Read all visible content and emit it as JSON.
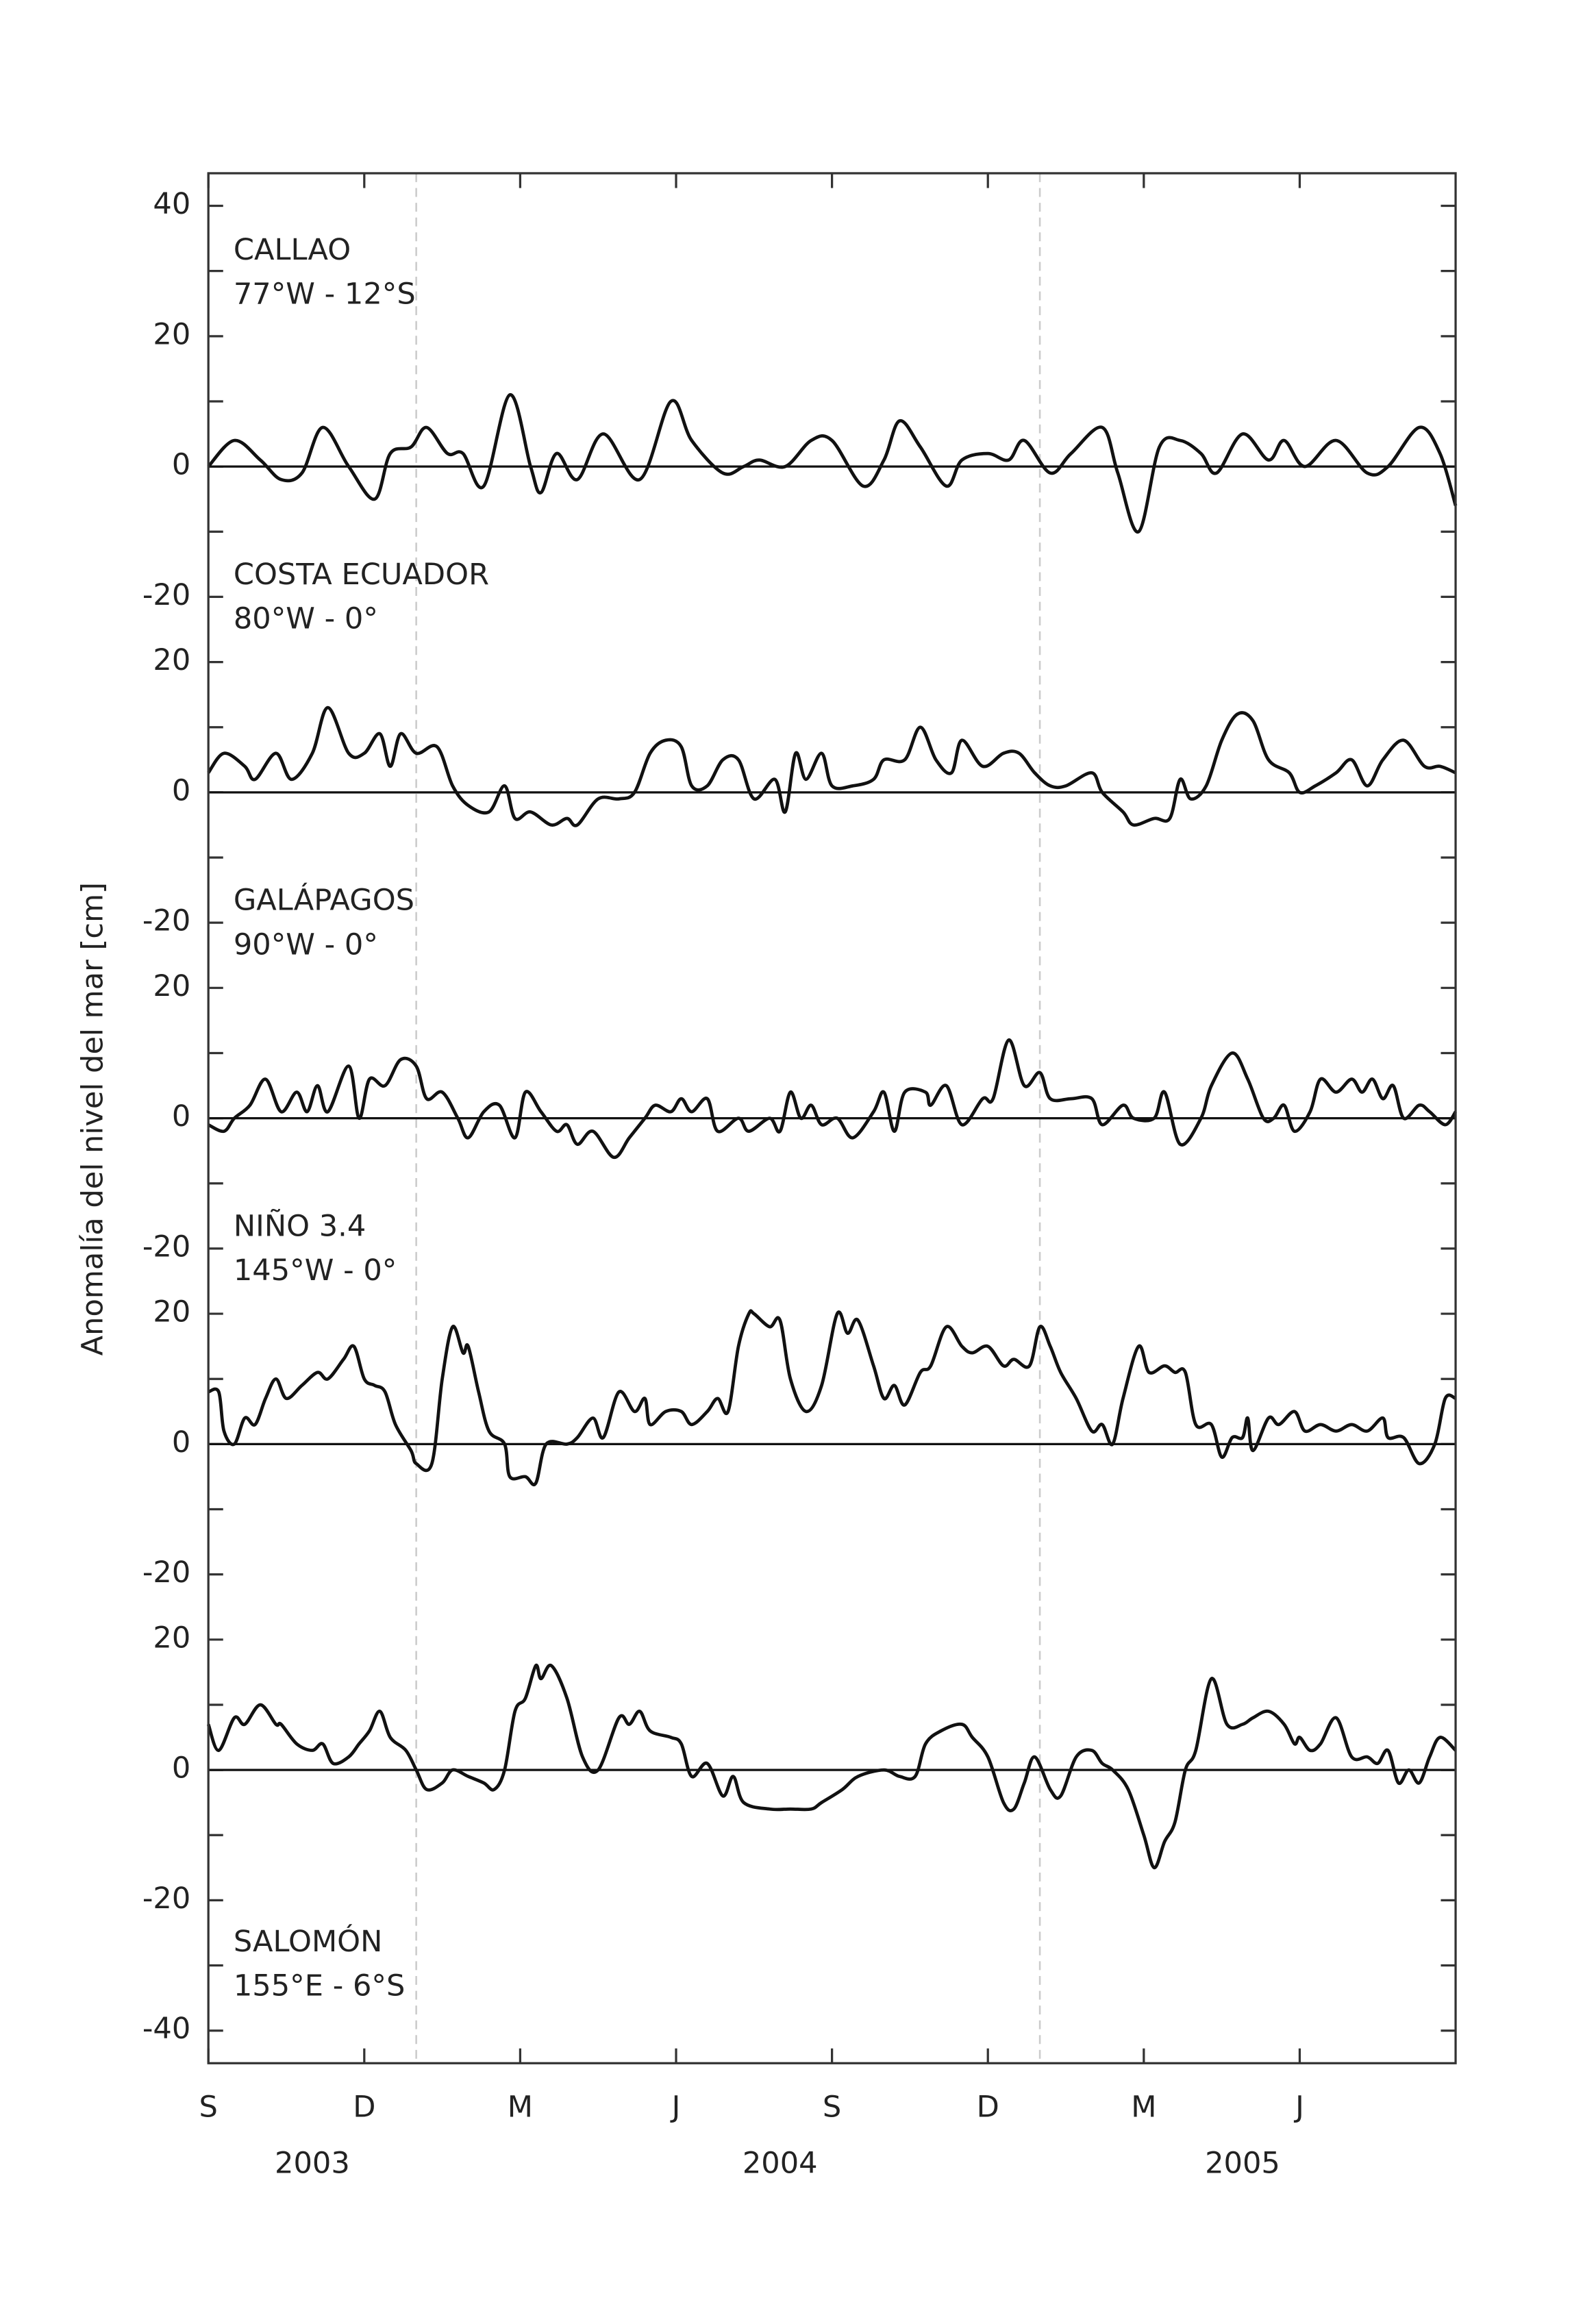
{
  "chart_data": {
    "type": "line",
    "ylabel": "Anomalía del nivel del mar [cm]",
    "color": "#111111",
    "xlim": [
      0,
      24
    ],
    "xticks": [
      {
        "value": 0,
        "label": "S"
      },
      {
        "value": 3,
        "label": "D"
      },
      {
        "value": 6,
        "label": "M"
      },
      {
        "value": 9,
        "label": "J"
      },
      {
        "value": 12,
        "label": "S"
      },
      {
        "value": 15,
        "label": "D"
      },
      {
        "value": 18,
        "label": "M"
      },
      {
        "value": 21,
        "label": "J"
      }
    ],
    "year_labels": [
      {
        "value": 2.0,
        "label": "2003"
      },
      {
        "value": 11.0,
        "label": "2004"
      },
      {
        "value": 19.9,
        "label": "2005"
      }
    ],
    "dividers": [
      4,
      16
    ],
    "series": [
      {
        "name": "CALLAO",
        "location": "77°W - 12°S",
        "ylim": [
          -25,
          45
        ],
        "yticks": [
          -20,
          0,
          20,
          40
        ],
        "yminor": [
          -10,
          10,
          30
        ],
        "x": [
          0.0,
          0.5,
          1.0,
          1.4,
          1.8,
          2.2,
          2.7,
          3.2,
          3.5,
          3.9,
          4.2,
          4.6,
          4.9,
          5.3,
          5.8,
          6.2,
          6.4,
          6.7,
          7.1,
          7.6,
          8.3,
          8.9,
          9.3,
          9.9,
          10.3,
          10.6,
          11.1,
          11.6,
          12.0,
          12.6,
          13.0,
          13.3,
          13.7,
          14.2,
          14.5,
          15.0,
          15.4,
          15.7,
          16.2,
          16.6,
          17.2,
          17.5,
          17.9,
          18.3,
          18.7,
          19.1,
          19.4,
          19.9,
          20.4,
          20.7,
          21.1,
          21.7,
          22.3,
          22.7,
          23.3,
          23.7,
          24.0
        ],
        "values": [
          0,
          4,
          1,
          -2,
          -1,
          6,
          0,
          -5,
          2,
          3,
          6,
          2,
          2,
          -3,
          11,
          0,
          -4,
          2,
          -2,
          5,
          -2,
          10,
          4,
          -1,
          0,
          1,
          0,
          4,
          4,
          -3,
          1,
          7,
          3,
          -3,
          1,
          2,
          1,
          4,
          -1,
          2,
          6,
          -1,
          -10,
          3,
          4,
          2,
          -1,
          5,
          1,
          4,
          0,
          4,
          -1,
          0,
          6,
          2,
          -6
        ]
      },
      {
        "name": "COSTA ECUADOR",
        "location": "80°W - 0°",
        "ylim": [
          -25,
          25
        ],
        "yticks": [
          -20,
          0,
          20
        ],
        "yminor": [
          -10,
          10
        ],
        "x": [
          0.0,
          0.3,
          0.7,
          0.9,
          1.3,
          1.6,
          2.0,
          2.3,
          2.7,
          3.0,
          3.3,
          3.5,
          3.7,
          4.0,
          4.4,
          4.7,
          5.0,
          5.4,
          5.7,
          5.9,
          6.2,
          6.6,
          6.9,
          7.1,
          7.5,
          7.9,
          8.2,
          8.5,
          8.8,
          9.1,
          9.3,
          9.6,
          9.9,
          10.2,
          10.5,
          10.9,
          11.1,
          11.3,
          11.5,
          11.8,
          12.0,
          12.4,
          12.8,
          13.0,
          13.4,
          13.7,
          14.0,
          14.3,
          14.5,
          14.9,
          15.3,
          15.6,
          15.9,
          16.2,
          16.5,
          17.0,
          17.2,
          17.6,
          17.8,
          18.2,
          18.5,
          18.7,
          18.9,
          19.2,
          19.5,
          19.8,
          20.1,
          20.4,
          20.8,
          21.0,
          21.3,
          21.7,
          22.0,
          22.3,
          22.6,
          23.0,
          23.4,
          23.7,
          24.0
        ],
        "values": [
          3,
          6,
          4,
          2,
          6,
          2,
          6,
          13,
          6,
          6,
          9,
          4,
          9,
          6,
          7,
          1,
          -2,
          -3,
          1,
          -4,
          -3,
          -5,
          -4,
          -5,
          -1,
          -1,
          0,
          6,
          8,
          7,
          1,
          1,
          5,
          5,
          -1,
          2,
          -3,
          6,
          2,
          6,
          1,
          1,
          2,
          5,
          5,
          10,
          5,
          3,
          8,
          4,
          6,
          6,
          3,
          1,
          1,
          3,
          0,
          -3,
          -5,
          -4,
          -4,
          2,
          -1,
          1,
          8,
          12,
          11,
          5,
          3,
          0,
          1,
          3,
          5,
          1,
          5,
          8,
          4,
          4,
          3
        ]
      },
      {
        "name": "GALÁPAGOS",
        "location": "90°W - 0°",
        "ylim": [
          -25,
          25
        ],
        "yticks": [
          -20,
          0,
          20
        ],
        "yminor": [
          -10,
          10
        ],
        "x": [
          0.0,
          0.3,
          0.5,
          0.8,
          1.1,
          1.4,
          1.7,
          1.9,
          2.1,
          2.3,
          2.7,
          2.9,
          3.1,
          3.4,
          3.7,
          4.0,
          4.2,
          4.5,
          4.8,
          5.0,
          5.3,
          5.6,
          5.9,
          6.1,
          6.4,
          6.7,
          6.9,
          7.1,
          7.4,
          7.8,
          8.1,
          8.4,
          8.6,
          8.9,
          9.1,
          9.3,
          9.6,
          9.8,
          10.2,
          10.4,
          10.8,
          11.0,
          11.2,
          11.4,
          11.6,
          11.8,
          12.1,
          12.4,
          12.8,
          13.0,
          13.2,
          13.4,
          13.8,
          13.9,
          14.2,
          14.5,
          14.9,
          15.1,
          15.4,
          15.7,
          16.0,
          16.2,
          16.6,
          17.0,
          17.2,
          17.6,
          17.8,
          18.2,
          18.4,
          18.7,
          19.1,
          19.3,
          19.7,
          20.0,
          20.3,
          20.5,
          20.7,
          20.9,
          21.2,
          21.4,
          21.7,
          22.0,
          22.2,
          22.4,
          22.6,
          22.8,
          23.0,
          23.3,
          23.5,
          23.8,
          24.0
        ],
        "values": [
          -1,
          -2,
          0,
          2,
          6,
          1,
          4,
          1,
          5,
          1,
          8,
          0,
          6,
          5,
          9,
          8,
          3,
          4,
          0,
          -3,
          1,
          2,
          -3,
          4,
          1,
          -2,
          -1,
          -4,
          -2,
          -6,
          -3,
          0,
          2,
          1,
          3,
          1,
          3,
          -2,
          0,
          -2,
          0,
          -2,
          4,
          0,
          2,
          -1,
          0,
          -3,
          1,
          4,
          -2,
          4,
          4,
          2,
          5,
          -1,
          3,
          3,
          12,
          5,
          7,
          3,
          3,
          3,
          -1,
          2,
          0,
          0,
          4,
          -4,
          0,
          5,
          10,
          6,
          0,
          0,
          2,
          -2,
          1,
          6,
          4,
          6,
          4,
          6,
          3,
          5,
          0,
          2,
          1,
          -1,
          1
        ]
      },
      {
        "name": "NIÑO 3.4",
        "location": "145°W - 0°",
        "ylim": [
          -25,
          25
        ],
        "yticks": [
          -20,
          0,
          20
        ],
        "yminor": [
          -10,
          10
        ],
        "x": [
          0.0,
          0.2,
          0.3,
          0.5,
          0.7,
          0.9,
          1.1,
          1.3,
          1.5,
          1.8,
          2.1,
          2.3,
          2.6,
          2.8,
          3.0,
          3.2,
          3.4,
          3.6,
          3.9,
          4.0,
          4.3,
          4.5,
          4.7,
          4.9,
          5.0,
          5.2,
          5.4,
          5.7,
          5.8,
          6.1,
          6.3,
          6.5,
          6.9,
          7.1,
          7.4,
          7.6,
          7.9,
          8.2,
          8.4,
          8.5,
          8.8,
          9.1,
          9.3,
          9.6,
          9.8,
          10.0,
          10.2,
          10.4,
          10.5,
          10.8,
          11.0,
          11.2,
          11.5,
          11.8,
          12.1,
          12.3,
          12.5,
          12.8,
          13.0,
          13.2,
          13.4,
          13.7,
          13.9,
          14.2,
          14.5,
          14.7,
          15.0,
          15.3,
          15.5,
          15.8,
          16.0,
          16.2,
          16.4,
          16.7,
          17.0,
          17.2,
          17.4,
          17.6,
          17.9,
          18.1,
          18.4,
          18.6,
          18.8,
          19.0,
          19.3,
          19.5,
          19.7,
          19.9,
          20.0,
          20.1,
          20.4,
          20.6,
          20.9,
          21.1,
          21.4,
          21.7,
          22.0,
          22.3,
          22.6,
          22.7,
          23.0,
          23.3,
          23.6,
          23.8,
          24.0
        ],
        "values": [
          8,
          8,
          2,
          0,
          4,
          3,
          7,
          10,
          7,
          9,
          11,
          10,
          13,
          15,
          10,
          9,
          8,
          3,
          -1,
          -3,
          -3,
          10,
          18,
          14,
          15,
          8,
          2,
          0,
          -5,
          -5,
          -6,
          0,
          0,
          1,
          4,
          1,
          8,
          5,
          7,
          3,
          5,
          5,
          3,
          5,
          7,
          5,
          15,
          20,
          20,
          18,
          19,
          10,
          5,
          9,
          20,
          17,
          19,
          12,
          7,
          9,
          6,
          11,
          12,
          18,
          15,
          14,
          15,
          12,
          13,
          12,
          18,
          15,
          11,
          7,
          2,
          3,
          0,
          7,
          15,
          11,
          12,
          11,
          11,
          3,
          3,
          -2,
          1,
          1,
          4,
          -1,
          4,
          3,
          5,
          2,
          3,
          2,
          3,
          2,
          4,
          1,
          1,
          -3,
          0,
          7,
          7
        ]
      },
      {
        "name": "SALOMÓN",
        "location": "155°E - 6°S",
        "ylim": [
          -45,
          25
        ],
        "yticks": [
          -40,
          -20,
          0,
          20
        ],
        "yminor": [
          -30,
          -10,
          10
        ],
        "x": [
          0.0,
          0.2,
          0.5,
          0.7,
          1.0,
          1.3,
          1.4,
          1.7,
          2.0,
          2.2,
          2.4,
          2.7,
          2.9,
          3.1,
          3.3,
          3.5,
          3.8,
          4.0,
          4.2,
          4.5,
          4.7,
          5.0,
          5.3,
          5.5,
          5.7,
          5.9,
          6.1,
          6.3,
          6.4,
          6.6,
          6.9,
          7.2,
          7.5,
          7.9,
          8.1,
          8.3,
          8.5,
          8.9,
          9.1,
          9.3,
          9.6,
          9.9,
          10.1,
          10.3,
          10.8,
          11.2,
          11.6,
          11.8,
          12.2,
          12.5,
          13.0,
          13.3,
          13.6,
          13.8,
          14.1,
          14.5,
          14.7,
          15.0,
          15.3,
          15.5,
          15.7,
          15.9,
          16.2,
          16.4,
          16.7,
          17.0,
          17.2,
          17.4,
          17.7,
          18.0,
          18.2,
          18.4,
          18.6,
          18.8,
          19.0,
          19.3,
          19.6,
          19.9,
          20.1,
          20.4,
          20.7,
          20.9,
          21.0,
          21.2,
          21.4,
          21.7,
          22.0,
          22.3,
          22.5,
          22.7,
          22.9,
          23.1,
          23.3,
          23.5,
          23.7,
          24.0
        ],
        "values": [
          7,
          3,
          8,
          7,
          10,
          7,
          7,
          4,
          3,
          4,
          1,
          2,
          4,
          6,
          9,
          5,
          3,
          0,
          -3,
          -2,
          0,
          -1,
          -2,
          -3,
          0,
          9,
          11,
          16,
          14,
          16,
          11,
          2,
          0,
          8,
          7,
          9,
          6,
          5,
          4,
          -1,
          1,
          -4,
          -1,
          -5,
          -6,
          -6,
          -6,
          -5,
          -3,
          -1,
          0,
          -1,
          -1,
          4,
          6,
          7,
          5,
          2,
          -5,
          -6,
          -2,
          2,
          -3,
          -4,
          2,
          3,
          1,
          0,
          -3,
          -10,
          -15,
          -11,
          -8,
          0,
          3,
          14,
          7,
          7,
          8,
          9,
          7,
          4,
          5,
          3,
          4,
          8,
          2,
          2,
          1,
          3,
          -2,
          0,
          -2,
          2,
          5,
          3
        ]
      }
    ]
  }
}
